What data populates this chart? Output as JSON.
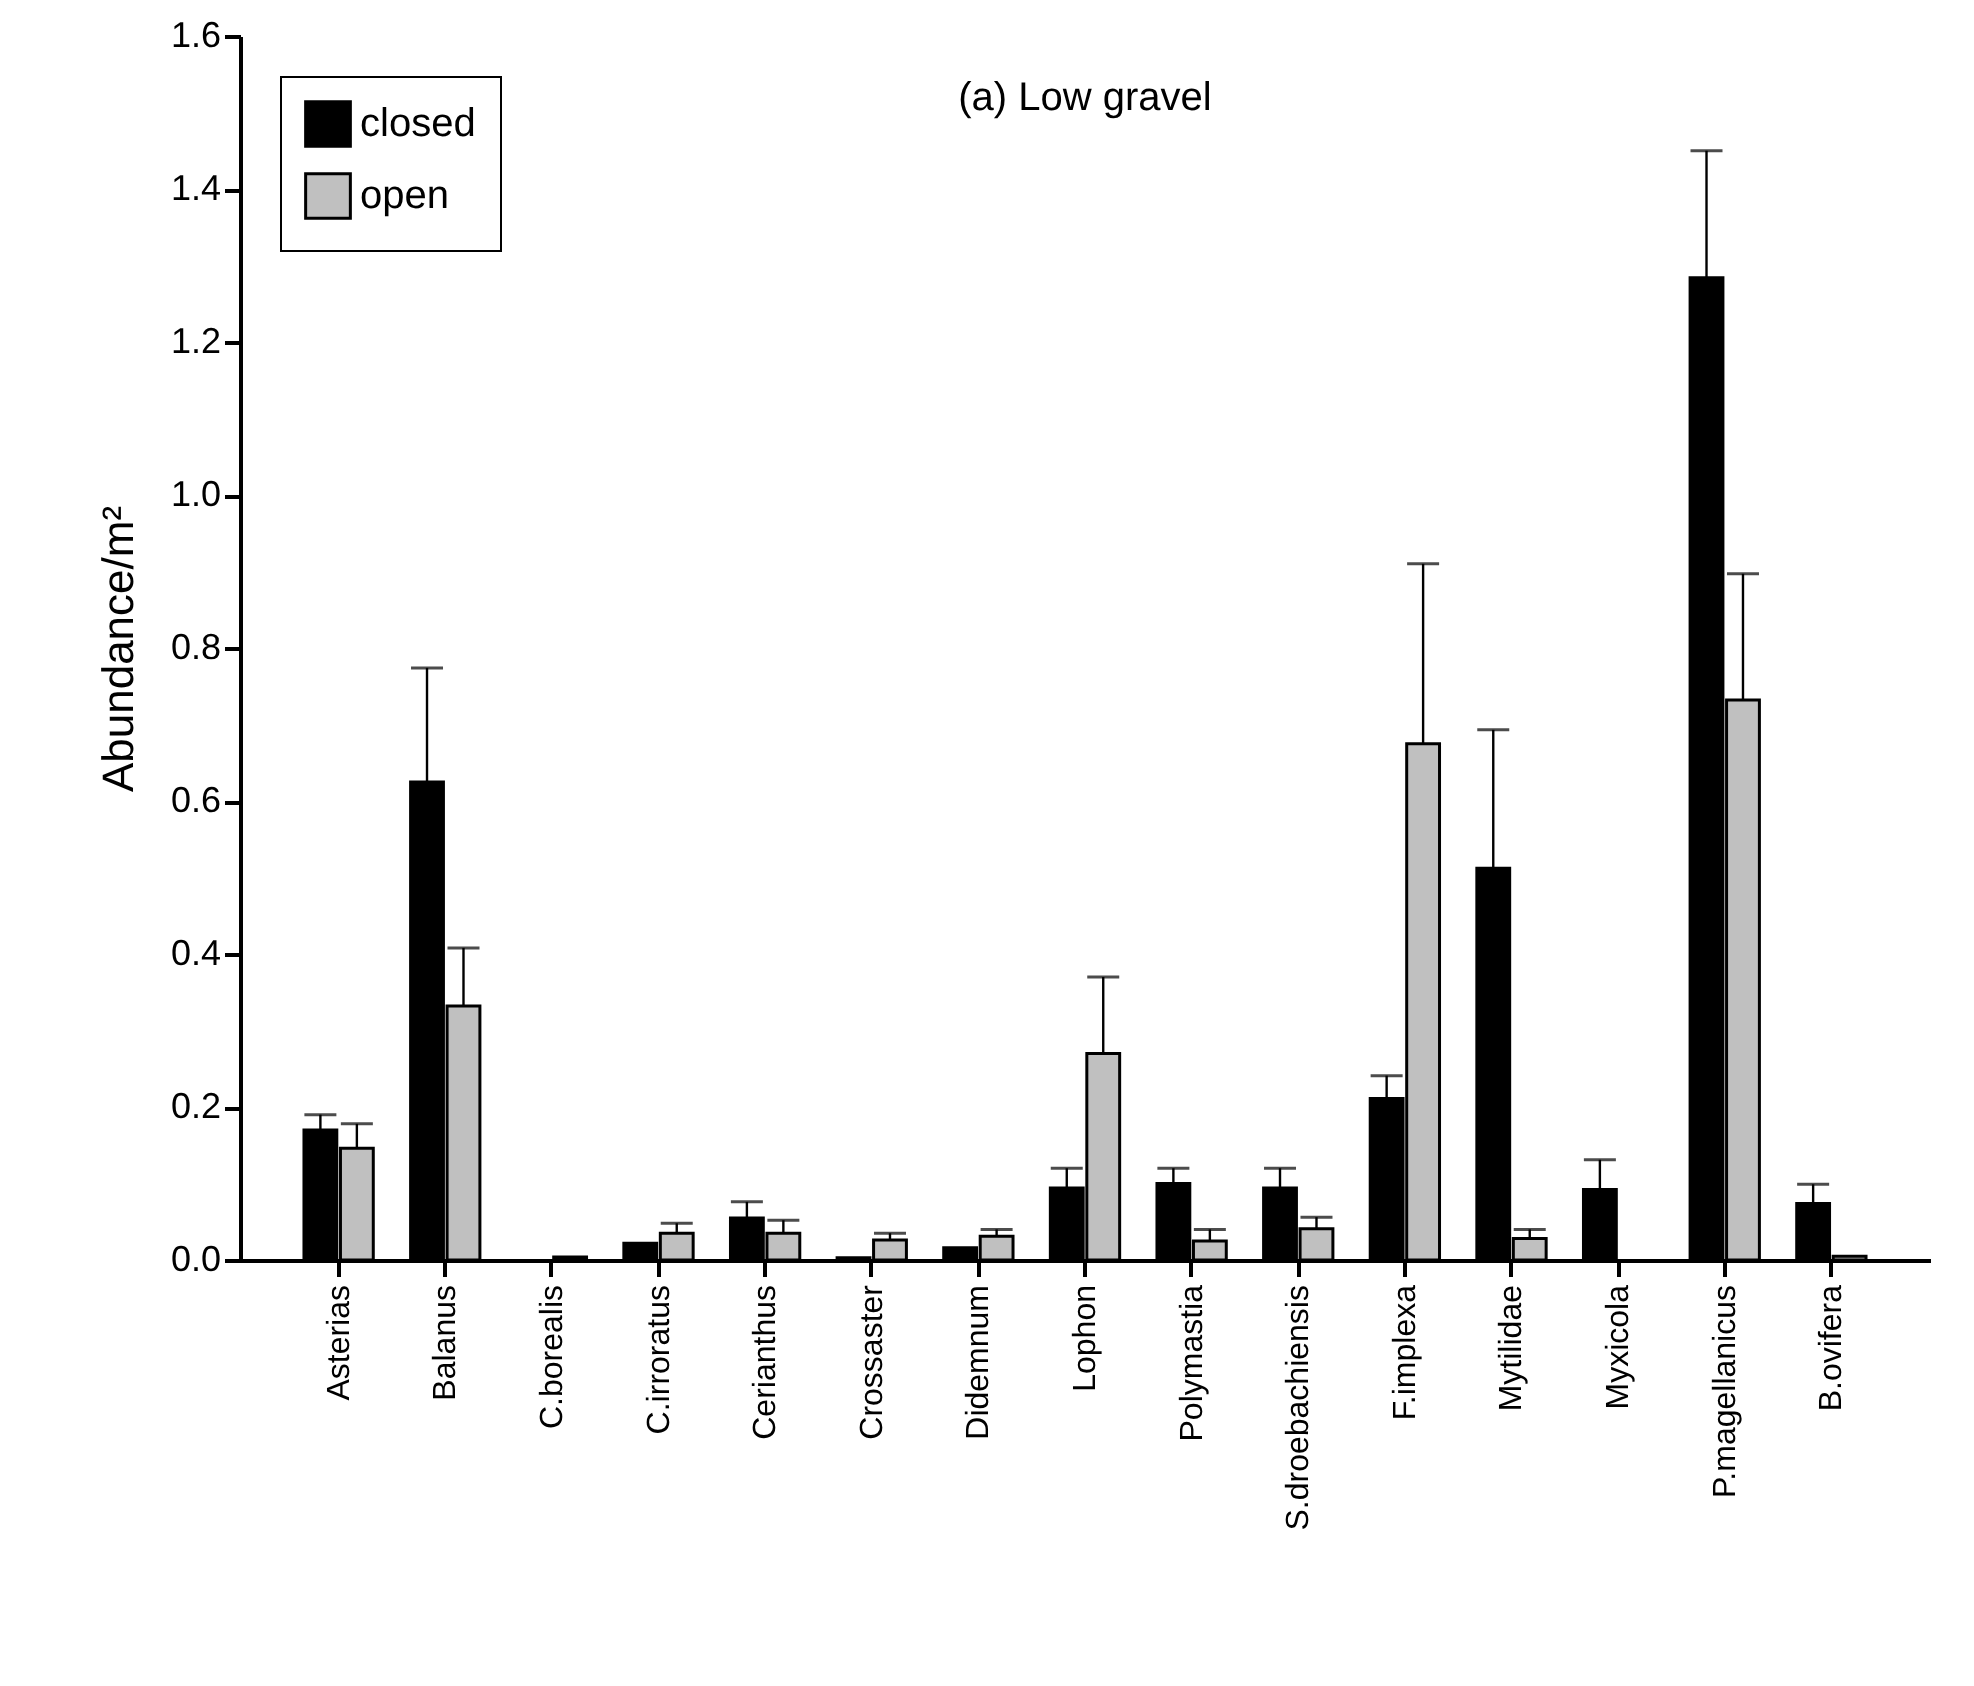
{
  "chart_data": {
    "type": "bar",
    "title": "(a) Low gravel",
    "ylabel": "Abundance/m²",
    "categories": [
      "Asterias",
      "Balanus",
      "C.borealis",
      "C.irroratus",
      "Cerianthus",
      "Crossaster",
      "Didemnum",
      "Lophon",
      "Polymastia",
      "S.droebachiensis",
      "F.implexa",
      "Mytilidae",
      "Myxicola",
      "P.magellanicus",
      "B.ovifera"
    ],
    "series": [
      {
        "name": "closed",
        "color": "#000000",
        "values": [
          0.17,
          0.625,
          null,
          0.022,
          0.055,
          0.003,
          0.016,
          0.094,
          0.1,
          0.094,
          0.211,
          0.512,
          0.092,
          1.284,
          0.074
        ],
        "errors": [
          [
            0.17,
            0.19
          ],
          [
            0.625,
            0.774
          ],
          null,
          null,
          [
            0.055,
            0.076
          ],
          null,
          null,
          [
            0.094,
            0.12
          ],
          [
            0.1,
            0.12
          ],
          [
            0.094,
            0.12
          ],
          [
            0.211,
            0.241
          ],
          [
            0.512,
            0.693
          ],
          [
            0.092,
            0.131
          ],
          [
            1.284,
            1.45
          ],
          [
            0.074,
            0.099
          ]
        ]
      },
      {
        "name": "open",
        "color": "#c0c0c0",
        "values": [
          0.146,
          0.332,
          0.004,
          0.035,
          0.035,
          0.026,
          0.031,
          0.27,
          0.025,
          0.041,
          0.675,
          0.028,
          null,
          0.732,
          0.005
        ],
        "errors": [
          [
            0.146,
            0.178
          ],
          [
            0.332,
            0.408
          ],
          null,
          [
            0.035,
            0.048
          ],
          [
            0.035,
            0.052
          ],
          [
            0.026,
            0.035
          ],
          [
            0.031,
            0.04
          ],
          [
            0.27,
            0.37
          ],
          [
            0.025,
            0.04
          ],
          [
            0.041,
            0.056
          ],
          [
            0.675,
            0.91
          ],
          [
            0.028,
            0.04
          ],
          null,
          [
            0.732,
            0.897
          ],
          null
        ]
      }
    ],
    "ylim": [
      0,
      1.6
    ],
    "yticks": [
      {
        "value": 0,
        "label": "0.0"
      },
      {
        "value": 0.2,
        "label": "0.2"
      },
      {
        "value": 0.4,
        "label": "0.4"
      },
      {
        "value": 0.6,
        "label": "0.6"
      },
      {
        "value": 0.8,
        "label": "0.8"
      },
      {
        "value": 1,
        "label": "1.0"
      },
      {
        "value": 1.2,
        "label": "1.2"
      },
      {
        "value": 1.4,
        "label": "1.4"
      },
      {
        "value": 1.6,
        "label": "1.6"
      }
    ],
    "legend": "top left"
  }
}
